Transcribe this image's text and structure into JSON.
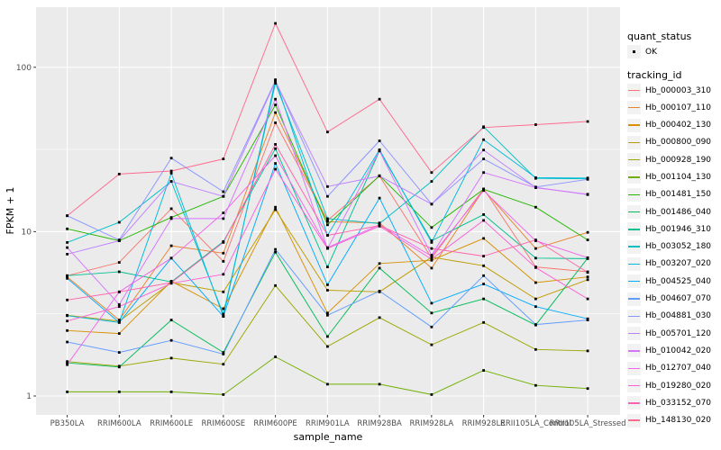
{
  "page": {
    "background": "#ffffff",
    "type": "ggplot-line-chart"
  },
  "theme": {
    "panel_bg": "#EBEBEB",
    "grid_major": "#FFFFFF",
    "grid_minor": "#FFFFFF",
    "tick_label_color": "#4D4D4D",
    "axis_title_color": "#000000",
    "point_color": "#000000",
    "legend_key_bg": "#F2F2F2"
  },
  "chart_data": {
    "type": "line",
    "title": "",
    "xlabel": "sample_name",
    "ylabel": "FPKM + 1",
    "y_scale": "log10",
    "ylim": [
      0.95,
      220
    ],
    "y_ticks": [
      1,
      10,
      100
    ],
    "y_tick_labels": [
      "1",
      "10",
      "100"
    ],
    "y_minor_ticks": [
      3.1623,
      31.623
    ],
    "grid": "on",
    "legend_position": "right",
    "point_marker": "small-black-square",
    "categories": [
      "PB350LA",
      "RRIM600LA",
      "RRIM600LE",
      "RRIM600SE",
      "RRIM600PE",
      "RRIM901LA",
      "RRIM928BA",
      "RRIM928LA",
      "RRIM928LE",
      "RRII105LA_Control",
      "RRII105LA_Stressed"
    ],
    "legend": {
      "shape_title": "quant_status",
      "shape_items": [
        {
          "label": "OK",
          "marker": "black-point"
        }
      ],
      "color_title": "tracking_id"
    },
    "series": [
      {
        "tracking_id": "Hb_000003_310",
        "color": "#F8766D",
        "values": [
          5.4,
          6.5,
          13.8,
          6.6,
          46,
          11.7,
          21.8,
          6.9,
          18.2,
          6.1,
          5.7
        ]
      },
      {
        "tracking_id": "Hb_000107_110",
        "color": "#E9842C",
        "values": [
          5.3,
          2.9,
          8.2,
          7.4,
          53,
          11.5,
          11.3,
          6.0,
          18.0,
          7.9,
          9.9
        ]
      },
      {
        "tracking_id": "Hb_000402_130",
        "color": "#D69100",
        "values": [
          2.5,
          2.4,
          5.0,
          3.4,
          14.1,
          3.2,
          6.4,
          6.7,
          9.1,
          4.9,
          5.3
        ]
      },
      {
        "tracking_id": "Hb_000800_090",
        "color": "#BC9D00",
        "values": [
          3.1,
          2.85,
          4.9,
          4.3,
          13.6,
          4.4,
          4.3,
          7.0,
          6.2,
          3.9,
          5.1
        ]
      },
      {
        "tracking_id": "Hb_000928_190",
        "color": "#9CA700",
        "values": [
          1.62,
          1.52,
          1.7,
          1.56,
          4.7,
          2.0,
          3.0,
          2.05,
          2.8,
          1.92,
          1.88
        ]
      },
      {
        "tracking_id": "Hb_001104_130",
        "color": "#6FB000",
        "values": [
          1.06,
          1.06,
          1.06,
          1.02,
          1.73,
          1.18,
          1.18,
          1.02,
          1.43,
          1.16,
          1.11
        ]
      },
      {
        "tracking_id": "Hb_001481_150",
        "color": "#24B700",
        "values": [
          10.4,
          8.8,
          12.2,
          16.4,
          59,
          11.0,
          21.9,
          10.6,
          18.1,
          14.1,
          8.9
        ]
      },
      {
        "tracking_id": "Hb_001486_040",
        "color": "#00BC56",
        "values": [
          1.59,
          1.5,
          2.9,
          1.84,
          7.5,
          2.3,
          6.0,
          3.2,
          3.9,
          2.7,
          6.9
        ]
      },
      {
        "tracking_id": "Hb_001946_310",
        "color": "#00C092",
        "values": [
          5.4,
          5.7,
          4.95,
          8.7,
          32,
          6.1,
          31.0,
          8.8,
          12.7,
          6.9,
          6.85
        ]
      },
      {
        "tracking_id": "Hb_003052_180",
        "color": "#00BFC4",
        "values": [
          8.6,
          11.4,
          20.2,
          3.15,
          80,
          12.0,
          11.2,
          20.2,
          43.5,
          21.1,
          21.0
        ]
      },
      {
        "tracking_id": "Hb_003207_020",
        "color": "#00BAE0",
        "values": [
          3.08,
          2.8,
          22.7,
          3.05,
          84,
          9.5,
          31.5,
          8.6,
          36.3,
          21.3,
          21.2
        ]
      },
      {
        "tracking_id": "Hb_004525_040",
        "color": "#00ACFC",
        "values": [
          5.2,
          2.8,
          6.9,
          3.05,
          26,
          4.75,
          16.0,
          3.67,
          4.8,
          3.5,
          2.95
        ]
      },
      {
        "tracking_id": "Hb_004607_070",
        "color": "#619CFF",
        "values": [
          2.13,
          1.84,
          2.18,
          1.8,
          7.8,
          3.1,
          4.35,
          2.63,
          5.4,
          2.72,
          2.9
        ]
      },
      {
        "tracking_id": "Hb_004881_030",
        "color": "#8B93FF",
        "values": [
          12.5,
          8.9,
          28.0,
          17.5,
          83,
          16.4,
          35.7,
          14.7,
          27.7,
          18.7,
          20.8
        ]
      },
      {
        "tracking_id": "Hb_005701_120",
        "color": "#BE80FF",
        "values": [
          7.3,
          8.8,
          20.2,
          16.4,
          82,
          18.8,
          21.8,
          14.7,
          31.4,
          18.6,
          16.8
        ]
      },
      {
        "tracking_id": "Hb_010042_020",
        "color": "#D575FE",
        "values": [
          8.0,
          3.6,
          12.0,
          12.0,
          64,
          7.9,
          31.0,
          7.2,
          22.9,
          18.5,
          16.9
        ]
      },
      {
        "tracking_id": "Hb_012707_040",
        "color": "#EF67EB",
        "values": [
          1.55,
          4.3,
          6.9,
          13.0,
          29,
          8.0,
          11.0,
          7.1,
          17.8,
          8.8,
          6.95
        ]
      },
      {
        "tracking_id": "Hb_019280_020",
        "color": "#FB61D7",
        "values": [
          2.86,
          3.5,
          4.85,
          5.5,
          24,
          7.9,
          10.8,
          6.8,
          11.7,
          6.05,
          3.9
        ]
      },
      {
        "tracking_id": "Hb_033152_070",
        "color": "#FF62AD",
        "values": [
          3.84,
          4.3,
          4.9,
          8.6,
          34,
          9.5,
          10.9,
          7.9,
          7.1,
          8.9,
          5.65
        ]
      },
      {
        "tracking_id": "Hb_148130_020",
        "color": "#FF6B8E",
        "values": [
          12.5,
          22.4,
          23.4,
          27.7,
          185,
          40.4,
          64,
          22.9,
          43.0,
          44.8,
          46.8
        ]
      }
    ]
  }
}
